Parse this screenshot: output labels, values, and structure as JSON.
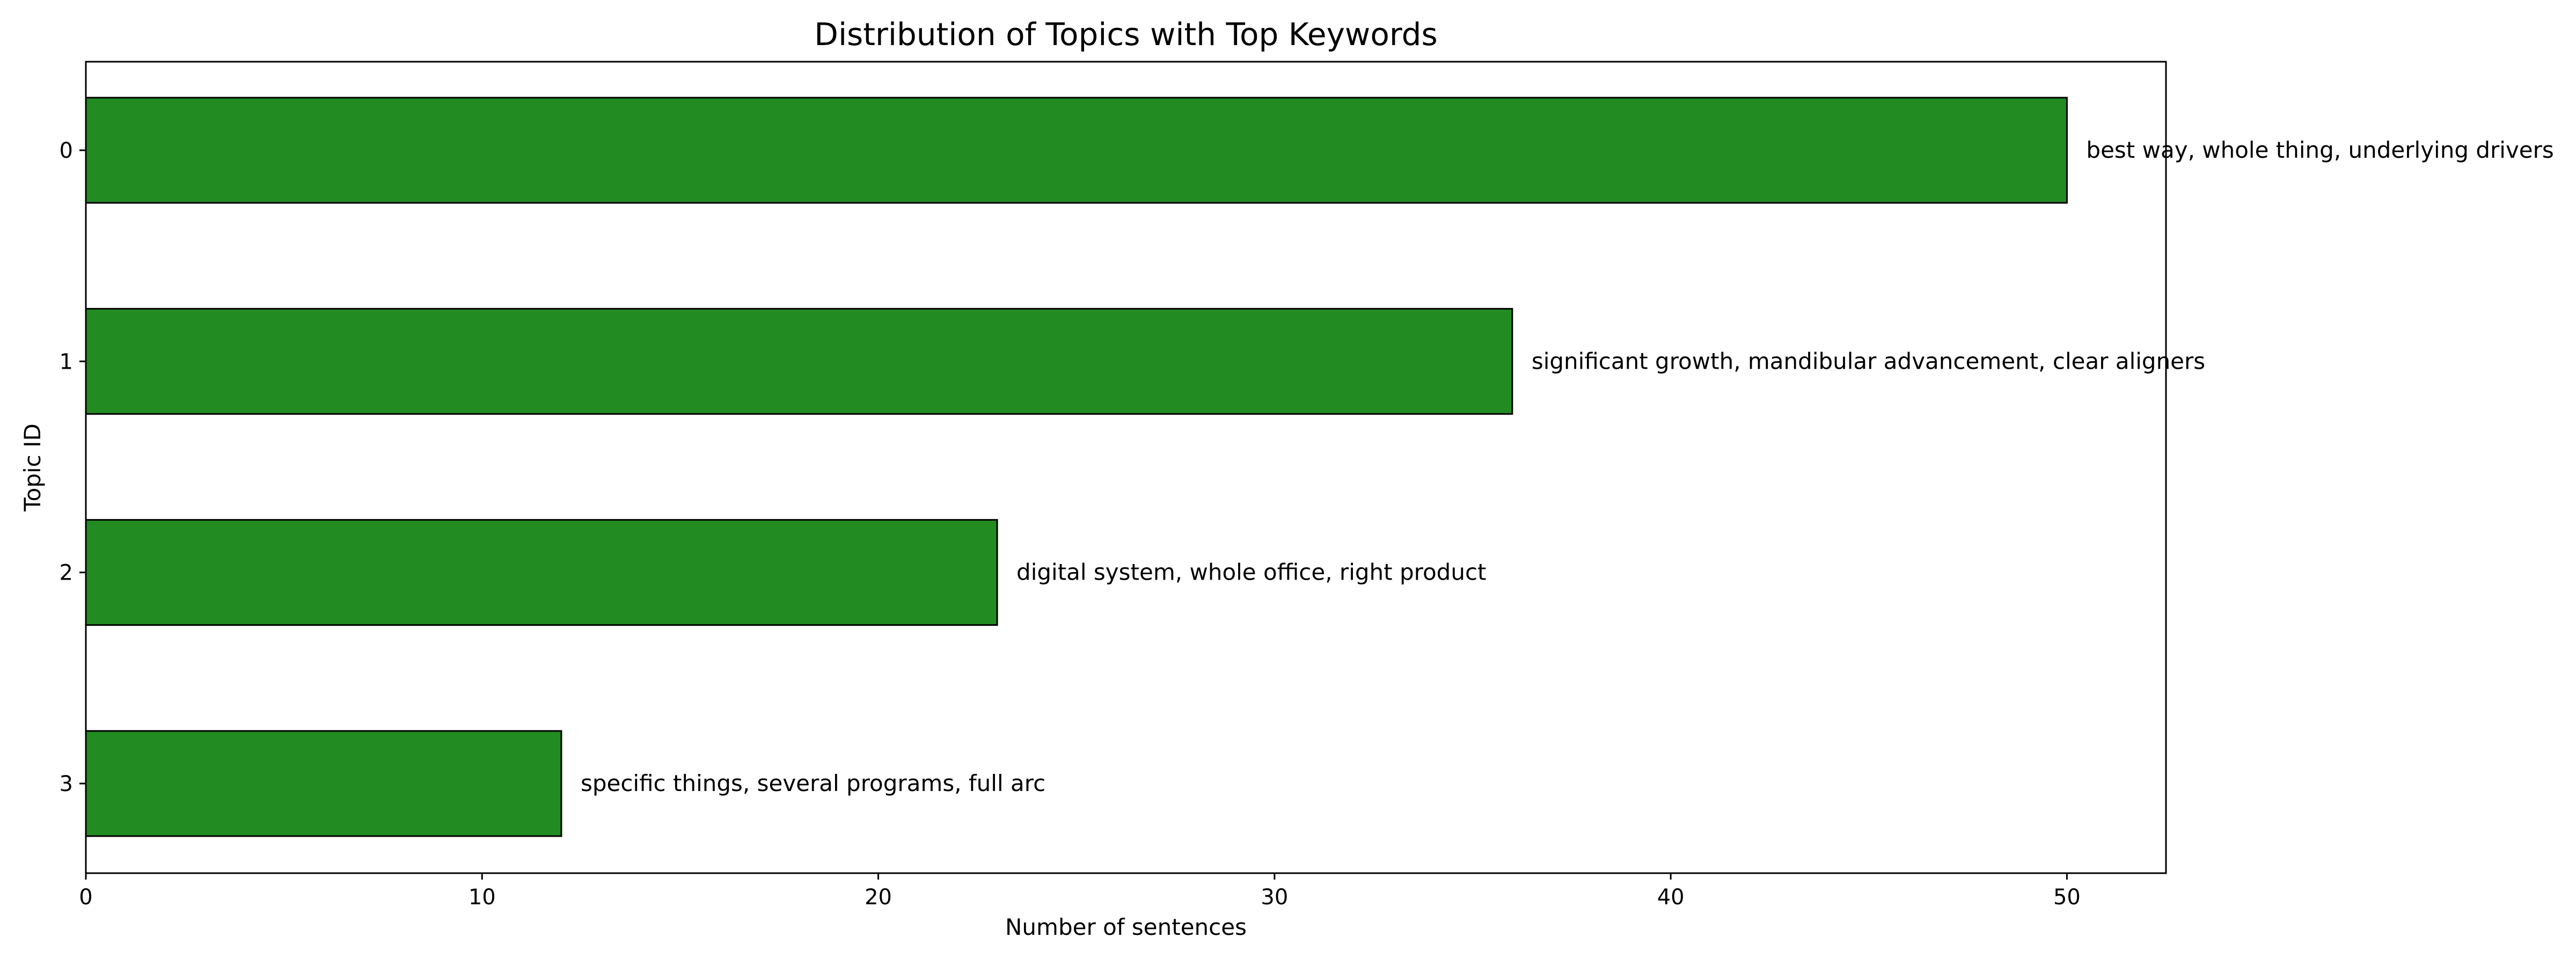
{
  "chart_data": {
    "type": "bar",
    "orientation": "horizontal",
    "title": "Distribution of Topics with Top Keywords",
    "xlabel": "Number of sentences",
    "ylabel": "Topic ID",
    "categories": [
      "0",
      "1",
      "2",
      "3"
    ],
    "values": [
      50,
      36,
      23,
      12
    ],
    "annotations": [
      "best way, whole thing, underlying drivers",
      "significant growth, mandibular advancement, clear aligners",
      "digital system, whole office, right product",
      "specific things, several programs, full arc"
    ],
    "xlim": [
      0,
      52.5
    ],
    "xticks": [
      0,
      10,
      20,
      30,
      40,
      50
    ],
    "grid": false,
    "bar_color": "#228b22",
    "edge_color": "#000000"
  }
}
